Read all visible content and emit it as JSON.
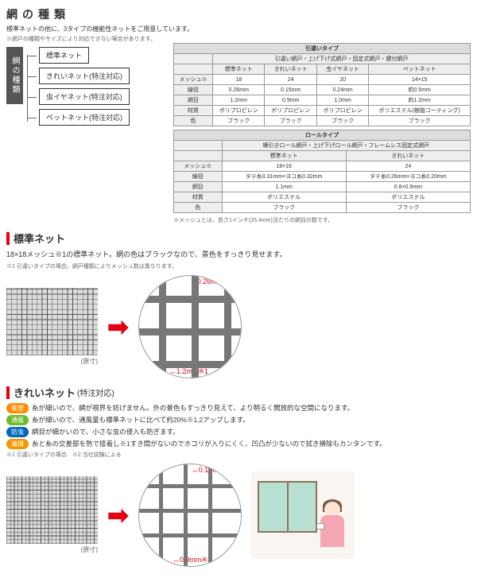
{
  "header": {
    "title": "網の種類",
    "subtitle": "標準ネットの他に、3タイプの機能性ネットをご用意しています。",
    "note": "※網戸の種類やサイズにより対応できない場合があります。"
  },
  "typeDiagram": {
    "label": "網の種類",
    "items": [
      "標準ネット",
      "きれいネット(特注対応)",
      "虫イヤネット(特注対応)",
      "ペットネット(特注対応)"
    ]
  },
  "table1": {
    "title": "引違いタイプ",
    "subtitle": "引違い網戸・上げ下げ式網戸・固定式網戸・鍵付網戸",
    "cols": [
      "標準ネット",
      "きれいネット",
      "虫イヤネット",
      "ペットネット"
    ],
    "rows": [
      {
        "h": "メッシュ※",
        "c": [
          "18",
          "24",
          "20",
          "14×15"
        ]
      },
      {
        "h": "線径",
        "c": [
          "0.26mm",
          "0.15mm",
          "0.24mm",
          "約0.5mm"
        ]
      },
      {
        "h": "網目",
        "c": [
          "1.2mm",
          "0.9mm",
          "1.0mm",
          "約1.2mm"
        ]
      },
      {
        "h": "材質",
        "c": [
          "ポリプロピレン",
          "ポリプロピレン",
          "ポリプロピレン",
          "ポリエステル(樹脂コーティング)"
        ]
      },
      {
        "h": "色",
        "c": [
          "ブラック",
          "ブラック",
          "ブラック",
          "ブラック"
        ]
      }
    ]
  },
  "table2": {
    "title": "ロールタイプ",
    "subtitle": "横引きロール網戸・上げ下げロール網戸・フレームレス固定式網戸",
    "cols": [
      "標準ネット",
      "きれいネット"
    ],
    "rows": [
      {
        "h": "メッシュ※",
        "c": [
          "18×16",
          "24"
        ]
      },
      {
        "h": "線径",
        "c": [
          "タテ糸0.31mm×ヨコ糸0.32mm",
          "タテ糸0.26mm×ヨコ糸0.20mm"
        ]
      },
      {
        "h": "網目",
        "c": [
          "1.1mm",
          "0.8×0.9mm"
        ]
      },
      {
        "h": "材質",
        "c": [
          "ポリエステル",
          "ポリエステル"
        ]
      },
      {
        "h": "色",
        "c": [
          "ブラック",
          "ブラック"
        ]
      }
    ],
    "footnote": "※メッシュとは、長さ1インチ(25.4mm)当たりの網目の数です。"
  },
  "section1": {
    "title": "標準ネット",
    "desc": "18×18メッシュ※1の標準ネット。網の色はブラックなので、景色をすっきり見せます。",
    "note": "※1 引違いタイプの場合。網戸種類によりメッシュ数は異なります。",
    "sample": "(原寸)",
    "dim1": "0.26mm※1",
    "dim2": "1.2mm※1",
    "meshDensity": 18,
    "lineWidth": 9,
    "lineGap": 32
  },
  "section2": {
    "title": "きれいネット",
    "titleSub": "(特注対応)",
    "features": [
      {
        "tag": "眺望",
        "cls": "",
        "text": "糸が細いので、網が視界を妨げません。外の景色もすっきり見えて、より明るく開放的な空間になります。"
      },
      {
        "tag": "通風",
        "cls": "green",
        "text": "糸が細いので、通風量も標準ネットに比べて約20%※1,2アップします。"
      },
      {
        "tag": "防虫",
        "cls": "blue",
        "text": "網目が細かいので、小さな虫の侵入も防ぎます。"
      },
      {
        "tag": "清掃",
        "cls": "orange2",
        "text": "糸と糸の交差部を熱で接着し※1すき間がないのでホコリが入りにくく、凹凸が少ないので拭き掃除もカンタンです。"
      }
    ],
    "note": "※1 引違いタイプの場合　※2 当社試験による",
    "sample": "(原寸)",
    "dim1": "0.15mm※1",
    "dim2": "0.9mm※1",
    "meshDensity": 24,
    "lineWidth": 5,
    "lineGap": 26
  },
  "colors": {
    "accent": "#e60012",
    "meshLine": "#777",
    "meshBg": "#fff"
  }
}
